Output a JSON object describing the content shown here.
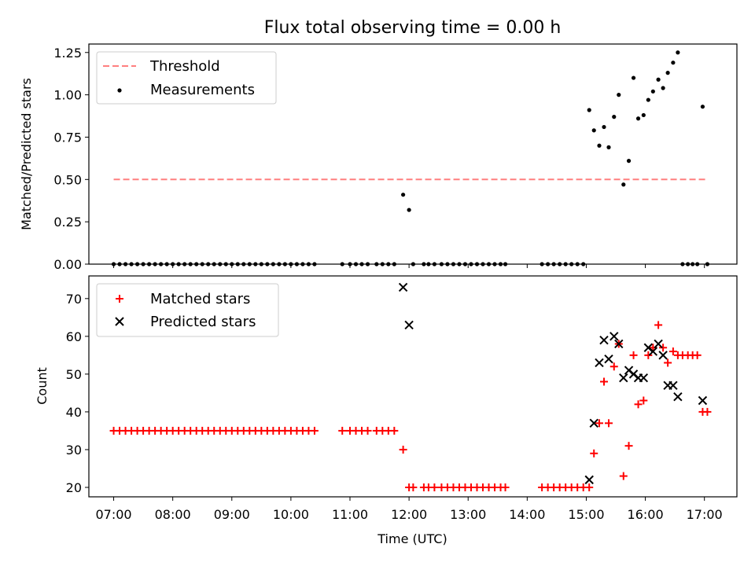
{
  "colors": {
    "threshold": "#ff7f7f",
    "measurements": "#000000",
    "matched": "#ff0000",
    "predicted": "#000000",
    "legend_border": "#cccccc"
  },
  "chart_data": [
    {
      "type": "scatter",
      "title": "Flux total observing time = 0.00 h",
      "xlabel": "",
      "ylabel": "Matched/Predicted stars",
      "xlim": [
        6.58,
        17.55
      ],
      "ylim": [
        0.0,
        1.3
      ],
      "yticks": [
        0.0,
        0.25,
        0.5,
        0.75,
        1.0,
        1.25
      ],
      "ytick_labels": [
        "0.00",
        "0.25",
        "0.50",
        "0.75",
        "1.00",
        "1.25"
      ],
      "legend": {
        "placement": "top-left",
        "entries": [
          "Threshold",
          "Measurements"
        ]
      },
      "threshold": {
        "name": "Threshold",
        "x": [
          7.0,
          17.05
        ],
        "y": 0.5
      },
      "series": [
        {
          "name": "Measurements",
          "x": [
            7.0,
            7.1,
            7.2,
            7.3,
            7.4,
            7.5,
            7.6,
            7.7,
            7.8,
            7.9,
            8.0,
            8.1,
            8.2,
            8.3,
            8.4,
            8.5,
            8.6,
            8.7,
            8.8,
            8.9,
            9.0,
            9.1,
            9.2,
            9.3,
            9.4,
            9.5,
            9.6,
            9.7,
            9.8,
            9.9,
            10.0,
            10.1,
            10.2,
            10.3,
            10.4,
            10.87,
            11.0,
            11.1,
            11.2,
            11.3,
            11.45,
            11.55,
            11.65,
            11.75,
            11.9,
            12.0,
            12.07,
            12.25,
            12.33,
            12.43,
            12.55,
            12.65,
            12.75,
            12.85,
            12.95,
            13.05,
            13.15,
            13.25,
            13.35,
            13.45,
            13.55,
            13.63,
            14.25,
            14.35,
            14.45,
            14.55,
            14.65,
            14.75,
            14.85,
            14.95,
            15.05,
            15.13,
            15.22,
            15.3,
            15.38,
            15.47,
            15.55,
            15.63,
            15.72,
            15.8,
            15.88,
            15.97,
            16.05,
            16.13,
            16.22,
            16.3,
            16.38,
            16.47,
            16.55,
            16.63,
            16.72,
            16.8,
            16.88,
            16.97,
            17.05
          ],
          "y": [
            0,
            0,
            0,
            0,
            0,
            0,
            0,
            0,
            0,
            0,
            0,
            0,
            0,
            0,
            0,
            0,
            0,
            0,
            0,
            0,
            0,
            0,
            0,
            0,
            0,
            0,
            0,
            0,
            0,
            0,
            0,
            0,
            0,
            0,
            0,
            0,
            0,
            0,
            0,
            0,
            0,
            0,
            0,
            0,
            0.41,
            0.32,
            0,
            0,
            0,
            0,
            0,
            0,
            0,
            0,
            0,
            0,
            0,
            0,
            0,
            0,
            0,
            0,
            0,
            0,
            0,
            0,
            0,
            0,
            0,
            0,
            0.91,
            0.79,
            0.7,
            0.81,
            0.69,
            0.87,
            1.0,
            0.47,
            0.61,
            1.1,
            0.86,
            0.88,
            0.97,
            1.02,
            1.09,
            1.04,
            1.13,
            1.19,
            1.25,
            0,
            0,
            0,
            0,
            0.93,
            0
          ]
        }
      ]
    },
    {
      "type": "scatter",
      "title": "",
      "xlabel": "Time (UTC)",
      "ylabel": "Count",
      "xlim": [
        6.58,
        17.55
      ],
      "ylim": [
        17.5,
        76.0
      ],
      "yticks": [
        20,
        30,
        40,
        50,
        60,
        70
      ],
      "ytick_labels": [
        "20",
        "30",
        "40",
        "50",
        "60",
        "70"
      ],
      "xticks": [
        7,
        8,
        9,
        10,
        11,
        12,
        13,
        14,
        15,
        16,
        17
      ],
      "xtick_labels": [
        "07:00",
        "08:00",
        "09:00",
        "10:00",
        "11:00",
        "12:00",
        "13:00",
        "14:00",
        "15:00",
        "16:00",
        "17:00"
      ],
      "legend": {
        "placement": "top-left",
        "entries": [
          "Matched stars",
          "Predicted stars"
        ]
      },
      "series": [
        {
          "name": "Matched stars",
          "x": [
            7.0,
            7.1,
            7.2,
            7.3,
            7.4,
            7.5,
            7.6,
            7.7,
            7.8,
            7.9,
            8.0,
            8.1,
            8.2,
            8.3,
            8.4,
            8.5,
            8.6,
            8.7,
            8.8,
            8.9,
            9.0,
            9.1,
            9.2,
            9.3,
            9.4,
            9.5,
            9.6,
            9.7,
            9.8,
            9.9,
            10.0,
            10.1,
            10.2,
            10.3,
            10.4,
            10.87,
            11.0,
            11.1,
            11.2,
            11.3,
            11.45,
            11.55,
            11.65,
            11.75,
            11.9,
            12.0,
            12.07,
            12.25,
            12.33,
            12.43,
            12.55,
            12.65,
            12.75,
            12.85,
            12.95,
            13.05,
            13.15,
            13.25,
            13.35,
            13.45,
            13.55,
            13.63,
            14.25,
            14.35,
            14.45,
            14.55,
            14.65,
            14.75,
            14.85,
            14.95,
            15.05,
            15.13,
            15.22,
            15.3,
            15.38,
            15.47,
            15.55,
            15.63,
            15.72,
            15.8,
            15.88,
            15.97,
            16.05,
            16.13,
            16.22,
            16.3,
            16.38,
            16.47,
            16.55,
            16.63,
            16.72,
            16.8,
            16.88,
            16.97,
            17.05
          ],
          "y": [
            35,
            35,
            35,
            35,
            35,
            35,
            35,
            35,
            35,
            35,
            35,
            35,
            35,
            35,
            35,
            35,
            35,
            35,
            35,
            35,
            35,
            35,
            35,
            35,
            35,
            35,
            35,
            35,
            35,
            35,
            35,
            35,
            35,
            35,
            35,
            35,
            35,
            35,
            35,
            35,
            35,
            35,
            35,
            35,
            30,
            20,
            20,
            20,
            20,
            20,
            20,
            20,
            20,
            20,
            20,
            20,
            20,
            20,
            20,
            20,
            20,
            20,
            20,
            20,
            20,
            20,
            20,
            20,
            20,
            20,
            20,
            29,
            37,
            48,
            37,
            52,
            58,
            23,
            31,
            55,
            42,
            43,
            55,
            57,
            63,
            57,
            53,
            56,
            55,
            55,
            55,
            55,
            55,
            40,
            40
          ]
        },
        {
          "name": "Predicted stars",
          "x": [
            11.9,
            12.0,
            15.05,
            15.13,
            15.22,
            15.3,
            15.38,
            15.47,
            15.55,
            15.63,
            15.72,
            15.8,
            15.88,
            15.97,
            16.05,
            16.13,
            16.22,
            16.3,
            16.38,
            16.47,
            16.55,
            16.97
          ],
          "y": [
            73,
            63,
            22,
            37,
            53,
            59,
            54,
            60,
            58,
            49,
            51,
            50,
            49,
            49,
            57,
            56,
            58,
            55,
            47,
            47,
            44,
            43
          ]
        }
      ]
    }
  ]
}
